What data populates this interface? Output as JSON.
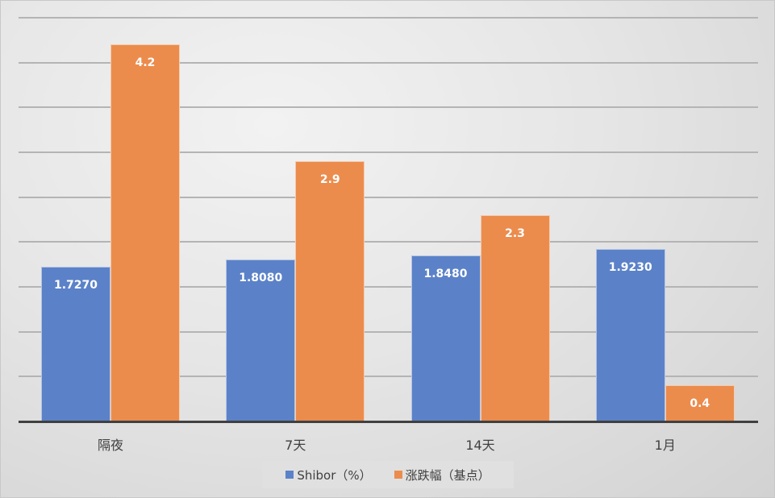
{
  "chart_data": {
    "type": "bar",
    "title": "",
    "xlabel": "",
    "ylabel": "",
    "categories": [
      "隔夜",
      "7天",
      "14天",
      "1月"
    ],
    "series": [
      {
        "name": "Shibor（%）",
        "color": "#5b82c8",
        "values": [
          1.727,
          1.808,
          1.848,
          1.923
        ],
        "labels": [
          "1.7270",
          "1.8080",
          "1.8480",
          "1.9230"
        ]
      },
      {
        "name": "涨跌幅（基点）",
        "color": "#eb8c4d",
        "values": [
          4.2,
          2.9,
          2.3,
          0.4
        ],
        "labels": [
          "4.2",
          "2.9",
          "2.3",
          "0.4"
        ]
      }
    ],
    "ylim": [
      0,
      4.5
    ],
    "grid": true,
    "axis_tick_labels_visible": false,
    "legend_position": "bottom"
  },
  "legend": [
    {
      "label": "Shibor（%）",
      "color": "#5b82c8"
    },
    {
      "label": "涨跌幅（基点）",
      "color": "#eb8c4d"
    }
  ]
}
